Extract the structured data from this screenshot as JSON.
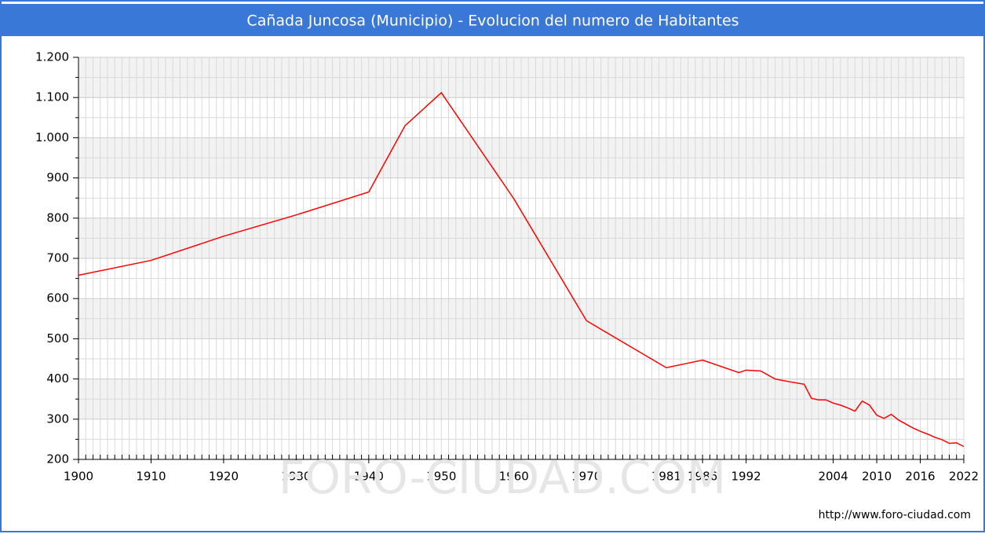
{
  "chart_data": {
    "type": "line",
    "title": "Cañada Juncosa (Municipio) - Evolucion del numero de Habitantes",
    "watermark": "FORO-CIUDAD.COM",
    "source": "http://www.foro-ciudad.com",
    "series": [
      {
        "name": "Habitantes",
        "color": "#ff0000",
        "x": [
          1900,
          1910,
          1920,
          1930,
          1940,
          1945,
          1950,
          1960,
          1970,
          1981,
          1986,
          1991,
          1992,
          1994,
          1996,
          1998,
          2000,
          2001,
          2002,
          2003,
          2004,
          2005,
          2006,
          2007,
          2008,
          2009,
          2010,
          2011,
          2012,
          2013,
          2014,
          2015,
          2016,
          2017,
          2018,
          2019,
          2020,
          2021,
          2022
        ],
        "values": [
          658,
          695,
          755,
          808,
          865,
          1030,
          1112,
          848,
          545,
          428,
          447,
          416,
          422,
          420,
          400,
          393,
          387,
          352,
          348,
          348,
          340,
          335,
          328,
          320,
          345,
          335,
          310,
          302,
          312,
          298,
          288,
          278,
          270,
          263,
          255,
          249,
          240,
          241,
          232
        ]
      }
    ],
    "xlim": [
      1900,
      2022
    ],
    "xticks": [
      1900,
      1910,
      1920,
      1930,
      1940,
      1950,
      1960,
      1970,
      1981,
      1986,
      1992,
      2004,
      2010,
      2016,
      2022
    ],
    "ylim": [
      200,
      1200
    ],
    "yticks": [
      200,
      300,
      400,
      500,
      600,
      700,
      800,
      900,
      {
        "value": 1000,
        "label": "1.000"
      },
      {
        "value": 1100,
        "label": "1.100"
      },
      {
        "value": 1200,
        "label": "1.200"
      }
    ],
    "grid": true
  }
}
